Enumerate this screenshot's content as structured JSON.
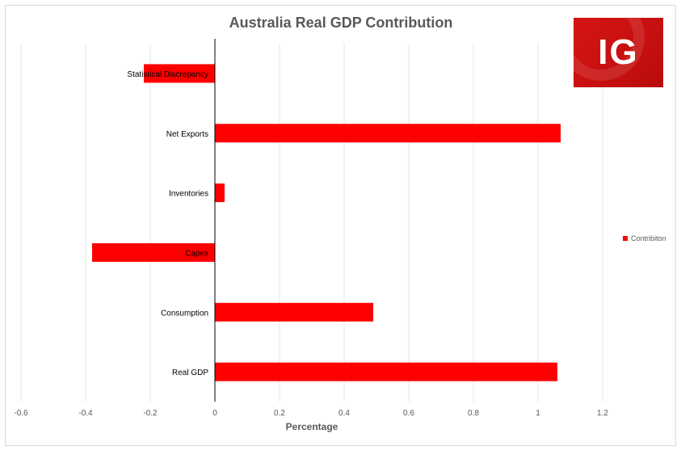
{
  "logo": {
    "text": "IG"
  },
  "chart_data": {
    "type": "bar",
    "orientation": "horizontal",
    "title": "Australia Real GDP Contribution",
    "xlabel": "Percentage",
    "ylabel": "",
    "categories": [
      "Statistical Discrepancy",
      "Net Exports",
      "Inventories",
      "Capex",
      "Consumption",
      "Real GDP"
    ],
    "series": [
      {
        "name": "Contribiton",
        "color": "#ff0000",
        "values": [
          -0.22,
          1.07,
          0.03,
          -0.38,
          0.49,
          1.06
        ]
      }
    ],
    "xlim": [
      -0.6,
      1.2
    ],
    "xticks": [
      "-0.6",
      "-0.4",
      "-0.2",
      "0",
      "0.2",
      "0.4",
      "0.6",
      "0.8",
      "1",
      "1.2"
    ],
    "grid": "vertical",
    "legend_position": "right"
  }
}
